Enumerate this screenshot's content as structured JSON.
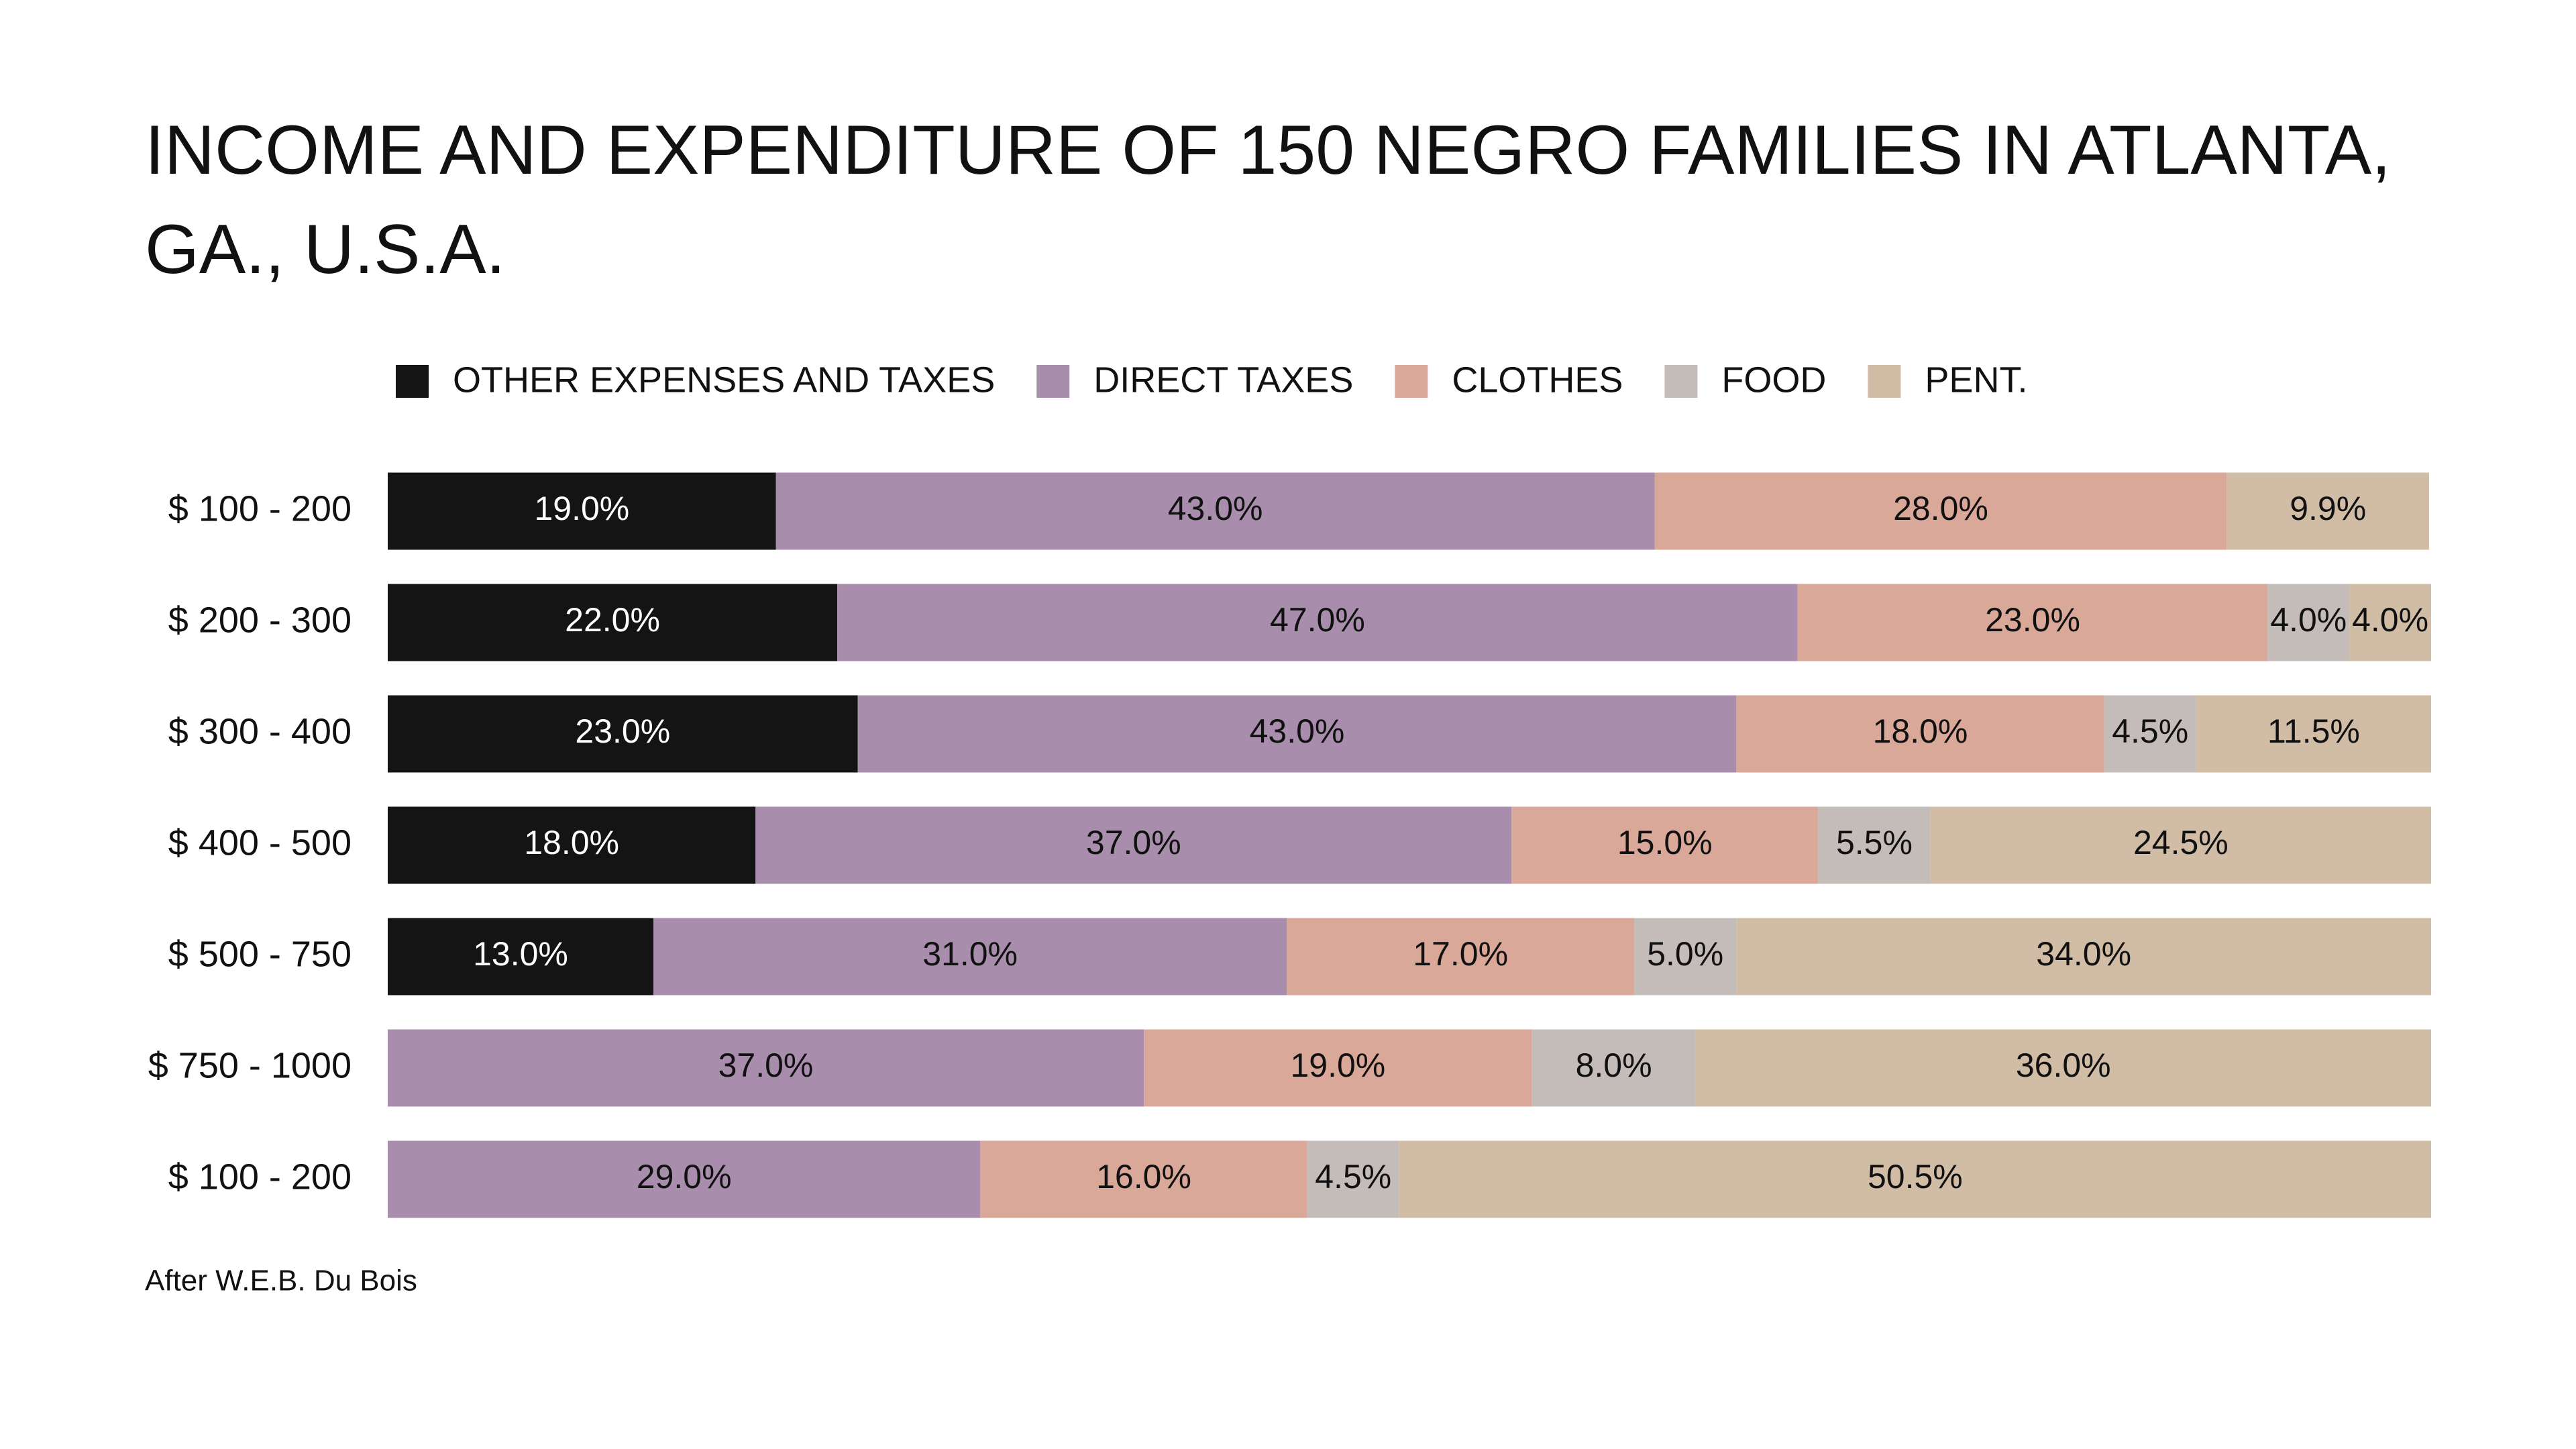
{
  "chart_data": {
    "type": "stacked_barh",
    "title": "INCOME AND EXPENDITURE OF 150 NEGRO FAMILIES IN ATLANTA, GA., U.S.A.",
    "source": "After W.E.B. Du Bois",
    "categories": [
      "$ 100 - 200",
      "$ 200 - 300",
      "$ 300 - 400",
      "$ 400 - 500",
      "$ 500 - 750",
      "$ 750 - 1000",
      "$ 100 - 200"
    ],
    "xlim": [
      0,
      100
    ],
    "series": [
      {
        "name": "OTHER EXPENSES AND TAXES",
        "color": "#141414",
        "values": [
          19,
          22,
          23,
          18,
          13,
          null,
          null
        ],
        "value_labels": [
          "19.0%",
          "22.0%",
          "23.0%",
          "18.0%",
          "13.0%",
          null,
          null
        ]
      },
      {
        "name": "DIRECT TAXES",
        "color": "#a88eac",
        "values": [
          43,
          47,
          43,
          37,
          31,
          37,
          29
        ],
        "value_labels": [
          "43.0%",
          "47.0%",
          "43.0%",
          "37.0%",
          "31.0%",
          "37.0%",
          "29.0%"
        ]
      },
      {
        "name": "CLOTHES",
        "color": "#d9a898",
        "values": [
          28,
          23,
          18,
          15,
          17,
          19,
          16
        ],
        "value_labels": [
          "28.0%",
          "23.0%",
          "18.0%",
          "15.0%",
          "17.0%",
          "19.0%",
          "16.0%"
        ]
      },
      {
        "name": "FOOD",
        "color": "#c4bcb8",
        "values": [
          null,
          4,
          4.5,
          5.5,
          5,
          8,
          4.5
        ],
        "value_labels": [
          null,
          "4.0%",
          "4.5%",
          "5.5%",
          "5.0%",
          "8.0%",
          "4.5%"
        ]
      },
      {
        "name": "PENT.",
        "color": "#d1bda6",
        "values": [
          9.9,
          4,
          11.5,
          24.5,
          34,
          36,
          50.5
        ],
        "value_labels": [
          "9.9%",
          "4.0%",
          "11.5%",
          "24.5%",
          "34.0%",
          "36.0%",
          "50.5%"
        ]
      }
    ]
  }
}
